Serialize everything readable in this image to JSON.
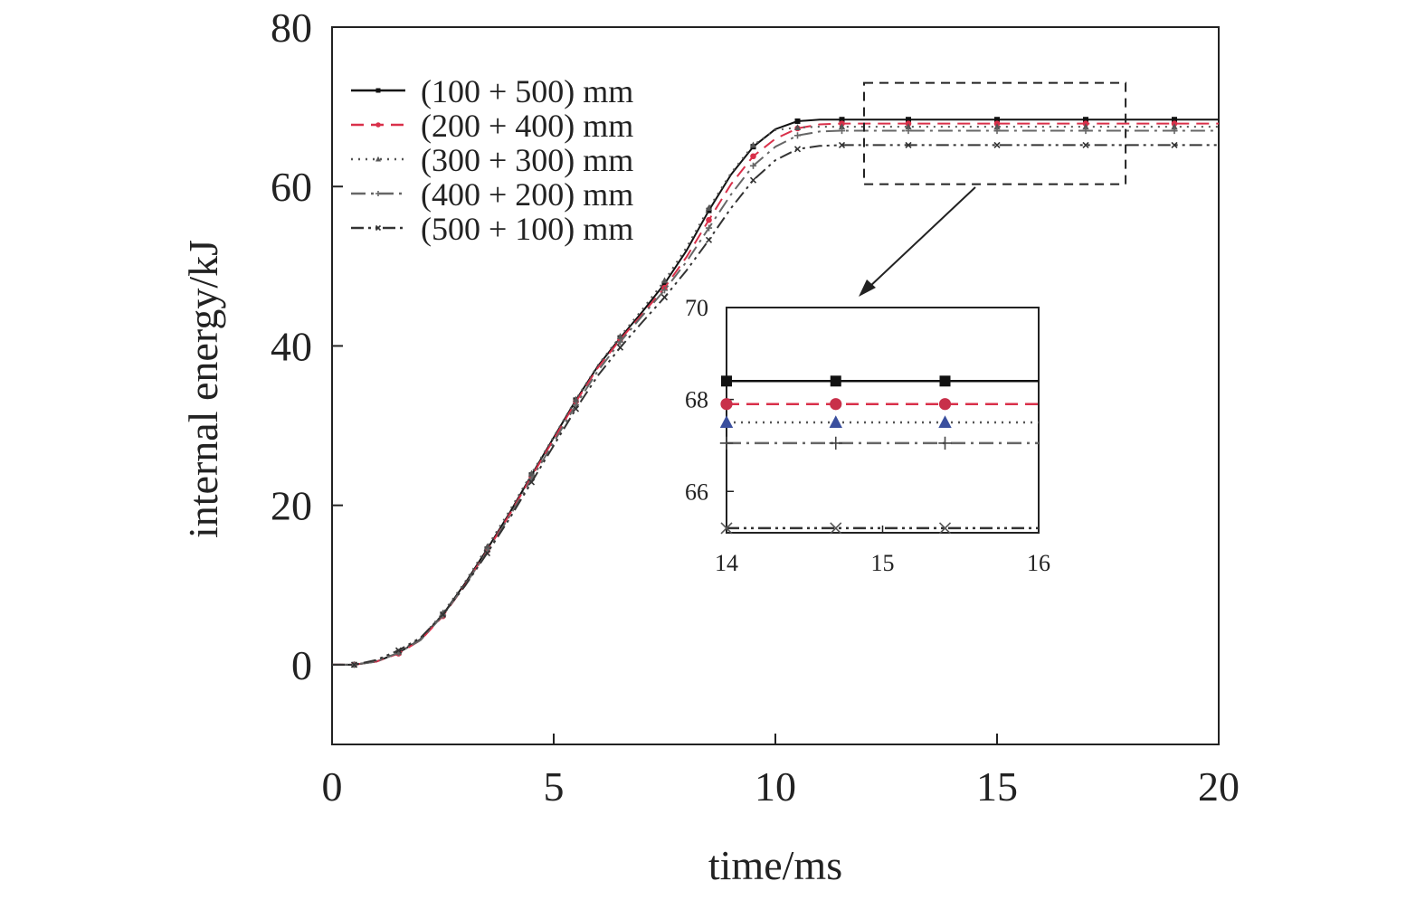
{
  "chart_data": [
    {
      "type": "line",
      "xlabel": "time/ms",
      "ylabel": "internal energy/kJ",
      "xlim": [
        0,
        20
      ],
      "ylim": [
        -10,
        80
      ],
      "xticks": [
        0,
        5,
        10,
        15,
        20
      ],
      "yticks": [
        0,
        20,
        40,
        60,
        80
      ],
      "grid": false,
      "legend": "top-left",
      "series": [
        {
          "name": "(100 + 500) mm",
          "color": "#111111",
          "dash": "solid",
          "marker": "square",
          "x": [
            0,
            0.5,
            1,
            1.5,
            2,
            2.5,
            3,
            3.5,
            4,
            4.5,
            5,
            5.5,
            6,
            6.5,
            7,
            7.5,
            8,
            8.5,
            9,
            9.5,
            10,
            10.5,
            11,
            11.5,
            12,
            13,
            14,
            15,
            16,
            17,
            18,
            19,
            20
          ],
          "y": [
            0,
            0,
            0.4,
            1.5,
            3.2,
            6.3,
            10.2,
            14.5,
            19.0,
            23.8,
            28.5,
            33.2,
            37.5,
            41.0,
            44.3,
            47.8,
            52.0,
            57.0,
            61.5,
            65.0,
            67.2,
            68.2,
            68.4,
            68.4,
            68.4,
            68.4,
            68.4,
            68.4,
            68.4,
            68.4,
            68.4,
            68.4,
            68.4
          ]
        },
        {
          "name": "(200 + 400) mm",
          "color": "#d9304a",
          "dash": "dashed",
          "marker": "circle",
          "x": [
            0,
            0.5,
            1,
            1.5,
            2,
            2.5,
            3,
            3.5,
            4,
            4.5,
            5,
            5.5,
            6,
            6.5,
            7,
            7.5,
            8,
            8.5,
            9,
            9.5,
            10,
            10.5,
            11,
            11.5,
            12,
            13,
            14,
            15,
            16,
            17,
            18,
            19,
            20
          ],
          "y": [
            0,
            0,
            0.4,
            1.4,
            3.1,
            6.1,
            10.0,
            14.3,
            18.8,
            23.6,
            28.3,
            33.0,
            37.3,
            40.8,
            44.0,
            47.3,
            51.2,
            55.8,
            60.3,
            63.8,
            66.0,
            67.3,
            67.8,
            67.9,
            67.9,
            67.9,
            67.9,
            67.9,
            67.9,
            67.9,
            67.9,
            67.9,
            67.9
          ]
        },
        {
          "name": "(300 + 300) mm",
          "color": "#555555",
          "dash": "dotted",
          "marker": "triangle",
          "x": [
            0,
            0.5,
            1,
            1.5,
            2,
            2.5,
            3,
            3.5,
            4,
            4.5,
            5,
            5.5,
            6,
            6.5,
            7,
            7.5,
            8,
            8.5,
            9,
            9.5,
            10,
            10.5,
            11,
            11.5,
            12,
            13,
            14,
            15,
            16,
            17,
            18,
            19,
            20
          ],
          "y": [
            0,
            0,
            0.5,
            1.6,
            3.3,
            6.5,
            10.4,
            14.8,
            19.3,
            24.0,
            28.6,
            33.3,
            37.6,
            41.2,
            44.6,
            48.2,
            52.4,
            57.3,
            61.7,
            65.2,
            67.1,
            67.4,
            67.5,
            67.5,
            67.5,
            67.5,
            67.5,
            67.5,
            67.5,
            67.5,
            67.5,
            67.5,
            67.5
          ]
        },
        {
          "name": "(400 + 200) mm",
          "color": "#666666",
          "dash": "dashdot",
          "marker": "plus",
          "x": [
            0,
            0.5,
            1,
            1.5,
            2,
            2.5,
            3,
            3.5,
            4,
            4.5,
            5,
            5.5,
            6,
            6.5,
            7,
            7.5,
            8,
            8.5,
            9,
            9.5,
            10,
            10.5,
            11,
            11.5,
            12,
            13,
            14,
            15,
            16,
            17,
            18,
            19,
            20
          ],
          "y": [
            0,
            0,
            0.4,
            1.5,
            3.1,
            6.2,
            10.0,
            14.2,
            18.6,
            23.3,
            27.9,
            32.6,
            36.9,
            40.5,
            43.8,
            47.0,
            50.6,
            54.8,
            59.0,
            62.6,
            65.0,
            66.4,
            66.9,
            67.0,
            67.0,
            67.0,
            67.0,
            67.0,
            67.0,
            67.0,
            67.0,
            67.0,
            67.0
          ]
        },
        {
          "name": "(500 + 100) mm",
          "color": "#333333",
          "dash": "dashdotdot",
          "marker": "cross",
          "x": [
            0,
            0.5,
            1,
            1.5,
            2,
            2.5,
            3,
            3.5,
            4,
            4.5,
            5,
            5.5,
            6,
            6.5,
            7,
            7.5,
            8,
            8.5,
            9,
            9.5,
            10,
            10.5,
            11,
            11.5,
            12,
            13,
            14,
            15,
            16,
            17,
            18,
            19,
            20
          ],
          "y": [
            0,
            0,
            0.6,
            1.8,
            3.4,
            6.3,
            9.9,
            14.0,
            18.3,
            22.9,
            27.5,
            32.1,
            36.3,
            39.8,
            43.0,
            46.1,
            49.5,
            53.3,
            57.3,
            60.8,
            63.3,
            64.7,
            65.1,
            65.2,
            65.2,
            65.2,
            65.2,
            65.2,
            65.2,
            65.2,
            65.2,
            65.2,
            65.2
          ]
        }
      ],
      "annotations": [
        "dashed zoom box over 12–18 ms, 60–73 kJ with arrow to inset"
      ]
    },
    {
      "type": "line",
      "xlim": [
        14,
        16
      ],
      "ylim": [
        65.1,
        70
      ],
      "xticks": [
        14,
        15,
        16
      ],
      "yticks": [
        66,
        68,
        70
      ],
      "xtick_labels": [
        "14",
        "15",
        "16"
      ],
      "ytick_labels": [
        "66",
        "68",
        "70"
      ],
      "series": [
        {
          "ref": "(100 + 500) mm",
          "color": "#111111",
          "marker_color": "#111111",
          "x": [
            14,
            14.7,
            15.4,
            16
          ],
          "y": [
            68.4,
            68.4,
            68.4,
            68.4
          ]
        },
        {
          "ref": "(200 + 400) mm",
          "color": "#d9304a",
          "marker_color": "#c8304a",
          "x": [
            14,
            14.7,
            15.4,
            16
          ],
          "y": [
            67.9,
            67.9,
            67.9,
            67.9
          ]
        },
        {
          "ref": "(300 + 300) mm",
          "color": "#555555",
          "marker_color": "#3a4f9e",
          "x": [
            14,
            14.7,
            15.4,
            16
          ],
          "y": [
            67.5,
            67.5,
            67.5,
            67.5
          ]
        },
        {
          "ref": "(400 + 200) mm",
          "color": "#666666",
          "marker_color": "#444444",
          "x": [
            14,
            14.7,
            15.4,
            16
          ],
          "y": [
            67.05,
            67.05,
            67.05,
            67.05
          ]
        },
        {
          "ref": "(500 + 100) mm",
          "color": "#333333",
          "marker_color": "#555555",
          "x": [
            14,
            14.7,
            15.4,
            16
          ],
          "y": [
            65.2,
            65.2,
            65.2,
            65.2
          ]
        }
      ]
    }
  ]
}
